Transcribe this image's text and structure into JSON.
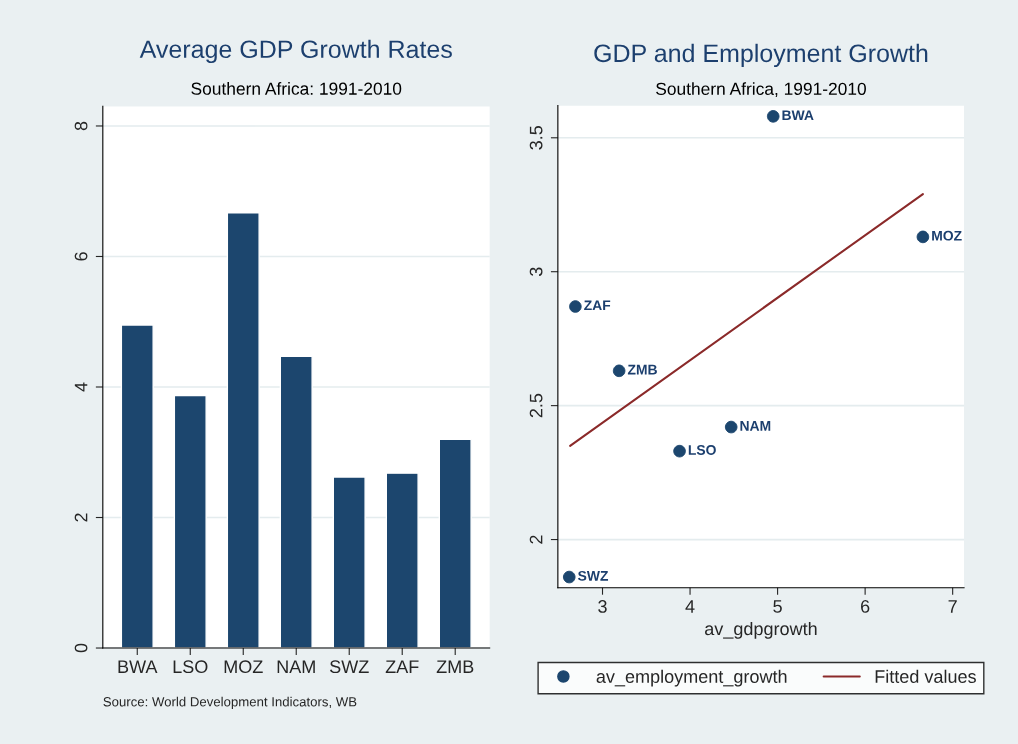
{
  "chart_data": [
    {
      "type": "bar",
      "title": "Average GDP Growth Rates",
      "subtitle": "Southern Africa: 1991-2010",
      "categories": [
        "BWA",
        "LSO",
        "MOZ",
        "NAM",
        "SWZ",
        "ZAF",
        "ZMB"
      ],
      "values": [
        4.95,
        3.87,
        6.67,
        4.47,
        2.62,
        2.68,
        3.2
      ],
      "color": "#1c466e",
      "ylim": [
        0,
        8.3
      ],
      "yticks": [
        0,
        2,
        4,
        6,
        8
      ],
      "grid": "y",
      "annotations": [
        "Source: World Development Indicators, WB"
      ]
    },
    {
      "type": "scatter",
      "title": "GDP and Employment Growth",
      "subtitle": "Southern Africa, 1991-2010",
      "xlabel": "av_gdpgrowth",
      "series": [
        {
          "name": "av_employment_growth",
          "type": "scatter",
          "marker": "circle",
          "color": "#1c466e",
          "x": [
            4.95,
            3.88,
            6.66,
            4.47,
            2.62,
            2.69,
            3.19
          ],
          "values": [
            3.58,
            2.33,
            3.13,
            2.42,
            1.86,
            2.87,
            2.63
          ]
        },
        {
          "name": "Fitted values",
          "type": "line",
          "color": "#8b2a2a",
          "x": [
            2.63,
            6.66
          ],
          "values": [
            2.35,
            3.29
          ]
        }
      ],
      "annotations": [
        {
          "text": "BWA",
          "x": 4.95,
          "y": 3.58
        },
        {
          "text": "LSO",
          "x": 3.88,
          "y": 2.33
        },
        {
          "text": "MOZ",
          "x": 6.66,
          "y": 3.13
        },
        {
          "text": "NAM",
          "x": 4.47,
          "y": 2.42
        },
        {
          "text": "SWZ",
          "x": 2.62,
          "y": 1.86
        },
        {
          "text": "ZAF",
          "x": 2.69,
          "y": 2.87
        },
        {
          "text": "ZMB",
          "x": 3.19,
          "y": 2.63
        }
      ],
      "xlim": [
        2.49,
        7.13
      ],
      "xticks": [
        3,
        4,
        5,
        6,
        7
      ],
      "ylim": [
        1.82,
        3.62
      ],
      "yticks": [
        2,
        2.5,
        3,
        3.5
      ],
      "grid": "y",
      "legend": "bottom"
    }
  ]
}
